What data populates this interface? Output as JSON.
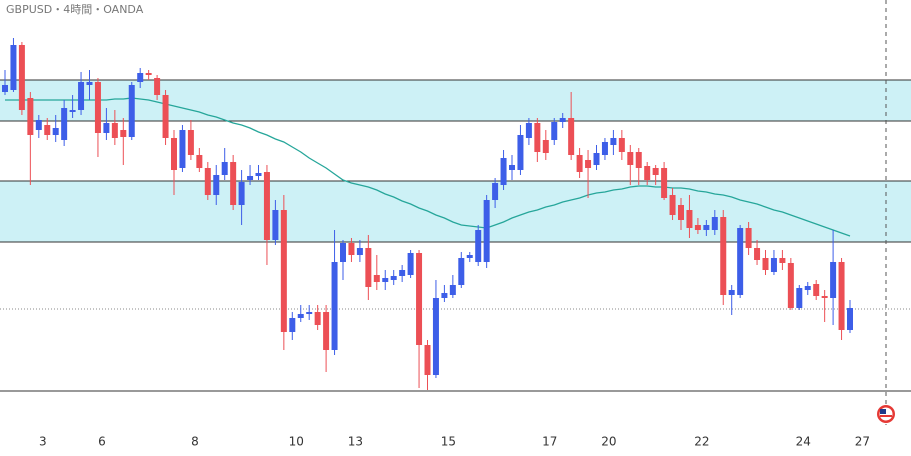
{
  "chart_data": {
    "type": "candlestick",
    "title": "GBPUSD・4時間・OANDA",
    "categories": [
      null,
      null,
      null,
      null,
      "3",
      null,
      null,
      null,
      null,
      null,
      null,
      "6",
      null,
      null,
      null,
      null,
      null,
      null,
      null,
      null,
      null,
      null,
      "8",
      null,
      null,
      null,
      null,
      null,
      null,
      null,
      null,
      null,
      null,
      null,
      "10",
      null,
      null,
      null,
      null,
      null,
      null,
      "13",
      null,
      null,
      null,
      null,
      null,
      null,
      null,
      null,
      null,
      null,
      "15",
      null,
      null,
      null,
      null,
      null,
      null,
      null,
      null,
      null,
      null,
      null,
      "17",
      null,
      null,
      null,
      null,
      null,
      null,
      "20",
      null,
      null,
      null,
      null,
      null,
      null,
      null,
      null,
      null,
      null,
      "22",
      null,
      null,
      null,
      null,
      null,
      null,
      null,
      null,
      null,
      null,
      null,
      "24",
      null,
      null,
      null,
      null,
      null,
      null,
      "27"
    ],
    "open": [
      308,
      310,
      355,
      302,
      270,
      275,
      265,
      260,
      288,
      290,
      315,
      318,
      267,
      277,
      270,
      263,
      318,
      327,
      322,
      305,
      262,
      232,
      270,
      245,
      232,
      205,
      225,
      238,
      195,
      220,
      224,
      228,
      160,
      190,
      68,
      82,
      86,
      88,
      88,
      50,
      138,
      157,
      145,
      152,
      125,
      118,
      120,
      124,
      125,
      147,
      55,
      25,
      102,
      105,
      115,
      142,
      138,
      138,
      200,
      215,
      230,
      230,
      262,
      277,
      260,
      260,
      278,
      282,
      245,
      240,
      235,
      245,
      255,
      262,
      248,
      248,
      234,
      232,
      232,
      205,
      195,
      190,
      175,
      170,
      170,
      183,
      105,
      105,
      172,
      152,
      142,
      128,
      142,
      137,
      92,
      110,
      116,
      104,
      102,
      138,
      70,
      null
    ],
    "high": [
      330,
      362,
      358,
      308,
      285,
      282,
      285,
      300,
      305,
      328,
      330,
      322,
      292,
      290,
      282,
      318,
      332,
      330,
      325,
      310,
      270,
      275,
      280,
      252,
      238,
      235,
      252,
      245,
      230,
      235,
      235,
      235,
      200,
      205,
      88,
      95,
      95,
      95,
      95,
      170,
      160,
      162,
      160,
      165,
      145,
      130,
      130,
      135,
      150,
      150,
      60,
      120,
      115,
      125,
      148,
      148,
      175,
      205,
      222,
      250,
      245,
      275,
      282,
      282,
      270,
      282,
      287,
      308,
      252,
      250,
      255,
      262,
      270,
      270,
      255,
      252,
      238,
      235,
      238,
      212,
      202,
      205,
      182,
      180,
      190,
      190,
      115,
      175,
      178,
      160,
      150,
      150,
      150,
      142,
      115,
      118,
      120,
      110,
      170,
      142,
      100,
      null
    ],
    "low": [
      305,
      308,
      285,
      215,
      262,
      260,
      258,
      254,
      282,
      285,
      300,
      243,
      260,
      255,
      235,
      260,
      312,
      320,
      300,
      255,
      205,
      228,
      240,
      228,
      200,
      195,
      220,
      190,
      175,
      215,
      220,
      135,
      155,
      50,
      60,
      78,
      80,
      70,
      28,
      45,
      120,
      138,
      138,
      100,
      110,
      110,
      115,
      118,
      122,
      12,
      10,
      22,
      98,
      102,
      112,
      138,
      134,
      132,
      192,
      210,
      220,
      225,
      255,
      238,
      240,
      255,
      272,
      240,
      222,
      202,
      230,
      240,
      245,
      240,
      215,
      215,
      215,
      215,
      200,
      180,
      170,
      162,
      166,
      164,
      165,
      95,
      85,
      102,
      145,
      135,
      125,
      125,
      130,
      90,
      90,
      105,
      100,
      78,
      75,
      60,
      67,
      null
    ],
    "close": [
      315,
      355,
      290,
      265,
      280,
      265,
      272,
      292,
      290,
      318,
      318,
      267,
      277,
      262,
      263,
      315,
      327,
      325,
      305,
      262,
      230,
      270,
      245,
      232,
      205,
      225,
      238,
      195,
      218,
      224,
      227,
      160,
      190,
      68,
      82,
      86,
      88,
      75,
      50,
      138,
      157,
      145,
      152,
      113,
      118,
      122,
      124,
      130,
      147,
      55,
      25,
      102,
      107,
      115,
      142,
      145,
      170,
      200,
      217,
      242,
      235,
      265,
      277,
      248,
      247,
      278,
      282,
      245,
      228,
      232,
      247,
      258,
      262,
      248,
      235,
      232,
      220,
      225,
      202,
      185,
      180,
      172,
      170,
      175,
      183,
      105,
      110,
      172,
      152,
      140,
      130,
      142,
      137,
      92,
      112,
      114,
      104,
      102,
      138,
      70,
      92,
      null
    ],
    "up_color": "#3d5ee8",
    "down_color": "#ec4f55",
    "ma": {
      "color": "#26a69a",
      "values": [
        300,
        300,
        300,
        300,
        300,
        300,
        300,
        300,
        300,
        300,
        300,
        300,
        300,
        301,
        301,
        302,
        301,
        300,
        298,
        296,
        294,
        292,
        290,
        288,
        285,
        283,
        280,
        277,
        275,
        272,
        268,
        265,
        261,
        258,
        253,
        248,
        242,
        237,
        232,
        226,
        220,
        217,
        215,
        213,
        210,
        206,
        203,
        199,
        196,
        192,
        189,
        185,
        182,
        178,
        175,
        174,
        173,
        172,
        175,
        178,
        182,
        185,
        188,
        190,
        193,
        195,
        198,
        200,
        202,
        205,
        207,
        208,
        210,
        211,
        213,
        214,
        214,
        213,
        213,
        212,
        212,
        211,
        209,
        208,
        206,
        205,
        203,
        200,
        198,
        196,
        193,
        190,
        188,
        185,
        182,
        179,
        176,
        173,
        170,
        167,
        164,
        null
      ]
    },
    "zones": [
      [
        279,
        320
      ],
      [
        158,
        219
      ]
    ],
    "zone_color": "#cdf1f6",
    "levels": [
      9
    ],
    "last_price": 91
  }
}
